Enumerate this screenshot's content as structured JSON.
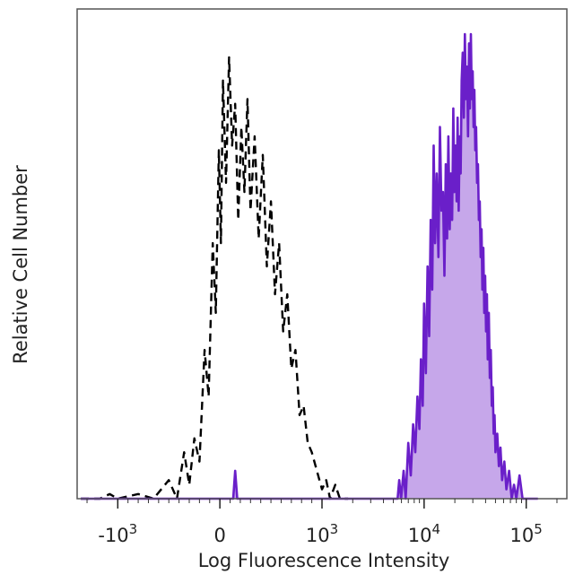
{
  "chart_data": {
    "type": "area",
    "title": "",
    "xlabel": "Log Fluorescence Intensity",
    "ylabel": "Relative Cell Number",
    "x_scale": "biexponential",
    "x_ticks": [
      {
        "value": -1000,
        "base": "-10",
        "exp": "3"
      },
      {
        "value": 0,
        "base": "0",
        "exp": ""
      },
      {
        "value": 1000,
        "base": "10",
        "exp": "3"
      },
      {
        "value": 10000,
        "base": "10",
        "exp": "4"
      },
      {
        "value": 100000,
        "base": "10",
        "exp": "5"
      }
    ],
    "xlim": [
      -2500,
      250000
    ],
    "ylim": [
      0,
      100
    ],
    "grid": false,
    "legend": "none",
    "series": [
      {
        "style": "dashed-outline",
        "color": "#000000",
        "points": [
          [
            -2300,
            0
          ],
          [
            -1900,
            0
          ],
          [
            -1500,
            0
          ],
          [
            -1200,
            1
          ],
          [
            -1000,
            0
          ],
          [
            -800,
            1
          ],
          [
            -650,
            0
          ],
          [
            -500,
            4
          ],
          [
            -420,
            0
          ],
          [
            -350,
            10
          ],
          [
            -300,
            3
          ],
          [
            -250,
            13
          ],
          [
            -200,
            8
          ],
          [
            -150,
            32
          ],
          [
            -110,
            22
          ],
          [
            -70,
            55
          ],
          [
            -40,
            40
          ],
          [
            -10,
            75
          ],
          [
            10,
            55
          ],
          [
            30,
            90
          ],
          [
            60,
            68
          ],
          [
            90,
            95
          ],
          [
            120,
            76
          ],
          [
            150,
            85
          ],
          [
            180,
            60
          ],
          [
            210,
            80
          ],
          [
            240,
            66
          ],
          [
            270,
            86
          ],
          [
            300,
            62
          ],
          [
            340,
            78
          ],
          [
            380,
            56
          ],
          [
            420,
            74
          ],
          [
            460,
            50
          ],
          [
            500,
            64
          ],
          [
            540,
            44
          ],
          [
            580,
            55
          ],
          [
            620,
            36
          ],
          [
            660,
            44
          ],
          [
            700,
            28
          ],
          [
            740,
            32
          ],
          [
            780,
            18
          ],
          [
            820,
            20
          ],
          [
            860,
            12
          ],
          [
            900,
            10
          ],
          [
            950,
            6
          ],
          [
            1000,
            2
          ],
          [
            1100,
            4
          ],
          [
            1200,
            0
          ],
          [
            1350,
            3
          ],
          [
            1500,
            0
          ],
          [
            1800,
            0
          ]
        ]
      },
      {
        "style": "filled",
        "color": "#6a1fc9",
        "fill": "#c6a7ea",
        "points": [
          [
            -2300,
            0
          ],
          [
            130,
            0
          ],
          [
            150,
            6
          ],
          [
            170,
            0
          ],
          [
            5500,
            0
          ],
          [
            5700,
            4
          ],
          [
            5950,
            0
          ],
          [
            6300,
            6
          ],
          [
            6600,
            0
          ],
          [
            7000,
            12
          ],
          [
            7400,
            5
          ],
          [
            7800,
            16
          ],
          [
            8200,
            10
          ],
          [
            8600,
            22
          ],
          [
            9000,
            15
          ],
          [
            9300,
            30
          ],
          [
            9700,
            20
          ],
          [
            10000,
            42
          ],
          [
            10400,
            27
          ],
          [
            10800,
            50
          ],
          [
            11200,
            35
          ],
          [
            11600,
            60
          ],
          [
            12000,
            45
          ],
          [
            12400,
            76
          ],
          [
            12800,
            55
          ],
          [
            13300,
            70
          ],
          [
            13800,
            52
          ],
          [
            14300,
            80
          ],
          [
            14800,
            62
          ],
          [
            15300,
            66
          ],
          [
            15800,
            48
          ],
          [
            16300,
            72
          ],
          [
            16800,
            56
          ],
          [
            17300,
            78
          ],
          [
            17800,
            58
          ],
          [
            18300,
            70
          ],
          [
            18800,
            60
          ],
          [
            19300,
            84
          ],
          [
            19800,
            66
          ],
          [
            20300,
            76
          ],
          [
            20800,
            64
          ],
          [
            21300,
            82
          ],
          [
            21800,
            62
          ],
          [
            22300,
            78
          ],
          [
            22800,
            70
          ],
          [
            23300,
            90
          ],
          [
            23900,
            96
          ],
          [
            24500,
            82
          ],
          [
            25100,
            100
          ],
          [
            25700,
            86
          ],
          [
            26300,
            93
          ],
          [
            26900,
            78
          ],
          [
            27500,
            98
          ],
          [
            28100,
            84
          ],
          [
            28700,
            100
          ],
          [
            29300,
            86
          ],
          [
            29900,
            92
          ],
          [
            30500,
            80
          ],
          [
            31100,
            88
          ],
          [
            31700,
            75
          ],
          [
            32300,
            80
          ],
          [
            33000,
            68
          ],
          [
            33700,
            72
          ],
          [
            34400,
            60
          ],
          [
            35100,
            64
          ],
          [
            35800,
            52
          ],
          [
            36500,
            58
          ],
          [
            37200,
            45
          ],
          [
            38000,
            54
          ],
          [
            38800,
            40
          ],
          [
            39600,
            48
          ],
          [
            40400,
            36
          ],
          [
            41200,
            44
          ],
          [
            42000,
            30
          ],
          [
            43000,
            40
          ],
          [
            44000,
            26
          ],
          [
            45000,
            32
          ],
          [
            46000,
            20
          ],
          [
            47000,
            24
          ],
          [
            48000,
            14
          ],
          [
            49000,
            18
          ],
          [
            50000,
            10
          ],
          [
            52000,
            14
          ],
          [
            54000,
            7
          ],
          [
            56000,
            11
          ],
          [
            58000,
            4
          ],
          [
            61000,
            8
          ],
          [
            64000,
            2
          ],
          [
            68000,
            6
          ],
          [
            72000,
            0
          ],
          [
            76000,
            3
          ],
          [
            80000,
            0
          ],
          [
            86000,
            5
          ],
          [
            92000,
            0
          ],
          [
            130000,
            0
          ]
        ]
      }
    ]
  }
}
